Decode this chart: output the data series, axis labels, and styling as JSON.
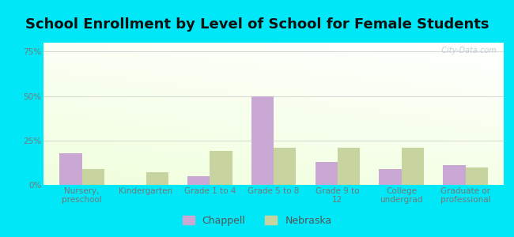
{
  "title": "School Enrollment by Level of School for Female Students",
  "categories": [
    "Nursery,\npreschool",
    "Kindergarten",
    "Grade 1 to 4",
    "Grade 5 to 8",
    "Grade 9 to\n12",
    "College\nundergrad",
    "Graduate or\nprofessional"
  ],
  "chappell": [
    18,
    0,
    5,
    50,
    13,
    9,
    11
  ],
  "nebraska": [
    9,
    7,
    19,
    21,
    21,
    21,
    10
  ],
  "chappell_color": "#c9a8d4",
  "nebraska_color": "#c8d4a0",
  "bar_width": 0.35,
  "ylim": [
    0,
    80
  ],
  "yticks": [
    0,
    25,
    50,
    75
  ],
  "ytick_labels": [
    "0%",
    "25%",
    "50%",
    "75%"
  ],
  "bg_outer": "#00e8f8",
  "grid_color": "#cccccc",
  "title_fontsize": 13,
  "tick_fontsize": 7.5,
  "legend_fontsize": 9,
  "watermark": "  City-Data.com",
  "title_color": "#111111",
  "tick_color": "#777777"
}
